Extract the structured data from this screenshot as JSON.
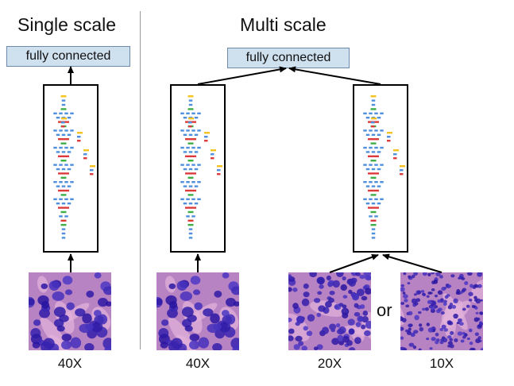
{
  "single": {
    "title": "Single scale",
    "fc_label": "fully connected",
    "magnification": "40X"
  },
  "multi": {
    "title": "Multi scale",
    "fc_label": "fully connected",
    "left_magnification": "40X",
    "right_magnifications": [
      "20X",
      "10X"
    ],
    "or_label": "or"
  },
  "colors": {
    "fc_fill": "#cfe0ef",
    "layer_blue": "#4f8fdc",
    "layer_green": "#3fae49",
    "layer_red": "#dd3b3b",
    "layer_yellow": "#f3c221",
    "tissue_bg": "#b883c2",
    "nucleus": "#3b2a86"
  }
}
